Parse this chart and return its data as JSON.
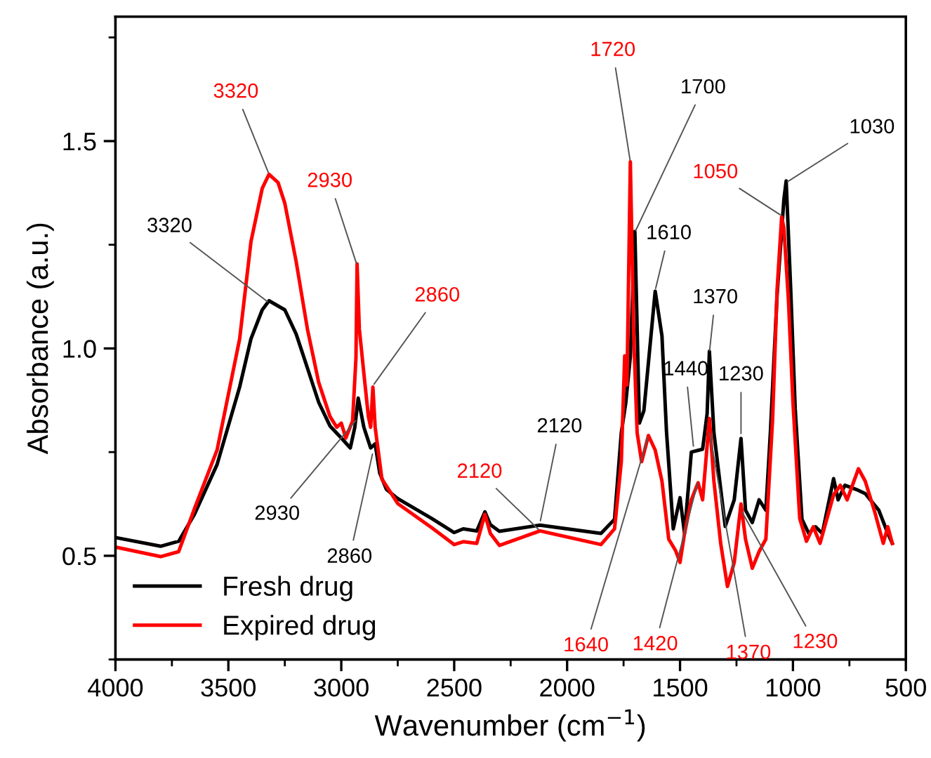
{
  "chart_data": {
    "type": "line",
    "xlabel": "Wavenumber (cm$^{−1}$)",
    "ylabel": "Absorbance (a.u.)",
    "xlim": [
      4000,
      500
    ],
    "ylim": [
      0.25,
      1.8
    ],
    "xticks": [
      4000,
      3500,
      3000,
      2500,
      2000,
      1500,
      1000,
      500
    ],
    "yticks": [
      {
        "value": 0.5,
        "label": "0.5"
      },
      {
        "value": 1.0,
        "label": "1.0"
      },
      {
        "value": 1.5,
        "label": "1.5"
      }
    ],
    "grid": false,
    "legend": "bottom left",
    "marker": "none",
    "line_style": "solid",
    "series": [
      {
        "name": "Fresh drug",
        "color": "#000000",
        "x": [
          4000,
          3800,
          3720,
          3650,
          3550,
          3450,
          3400,
          3350,
          3320,
          3250,
          3200,
          3150,
          3100,
          3050,
          3000,
          2960,
          2940,
          2925,
          2900,
          2870,
          2850,
          2830,
          2800,
          2750,
          2600,
          2500,
          2460,
          2400,
          2364,
          2340,
          2300,
          2120,
          1850,
          1790,
          1760,
          1740,
          1720,
          1700,
          1680,
          1660,
          1610,
          1580,
          1560,
          1530,
          1500,
          1480,
          1450,
          1400,
          1380,
          1370,
          1350,
          1300,
          1260,
          1230,
          1210,
          1180,
          1150,
          1120,
          1100,
          1070,
          1040,
          1030,
          1010,
          990,
          960,
          930,
          900,
          870,
          820,
          800,
          770,
          720,
          680,
          620,
          580,
          560
        ],
        "values": [
          0.544,
          0.523,
          0.535,
          0.6,
          0.72,
          0.907,
          1.023,
          1.093,
          1.115,
          1.093,
          1.035,
          0.953,
          0.87,
          0.813,
          0.784,
          0.76,
          0.81,
          0.88,
          0.81,
          0.76,
          0.77,
          0.7,
          0.66,
          0.638,
          0.59,
          0.556,
          0.565,
          0.56,
          0.606,
          0.575,
          0.559,
          0.574,
          0.554,
          0.588,
          0.797,
          0.87,
          0.98,
          1.282,
          0.82,
          0.85,
          1.138,
          1.03,
          0.8,
          0.565,
          0.64,
          0.554,
          0.75,
          0.757,
          0.843,
          0.993,
          0.797,
          0.571,
          0.635,
          0.783,
          0.61,
          0.58,
          0.635,
          0.61,
          0.797,
          1.13,
          1.36,
          1.404,
          1.144,
          0.855,
          0.588,
          0.554,
          0.57,
          0.554,
          0.686,
          0.635,
          0.67,
          0.66,
          0.65,
          0.61,
          0.554,
          0.53
        ]
      },
      {
        "name": "Expired drug",
        "color": "#ff0000",
        "x": [
          4000,
          3800,
          3720,
          3650,
          3550,
          3450,
          3400,
          3350,
          3320,
          3280,
          3250,
          3200,
          3150,
          3100,
          3050,
          3020,
          3000,
          2980,
          2950,
          2935,
          2930,
          2920,
          2900,
          2880,
          2870,
          2860,
          2850,
          2820,
          2750,
          2600,
          2500,
          2460,
          2400,
          2364,
          2340,
          2300,
          2120,
          1850,
          1790,
          1760,
          1745,
          1735,
          1720,
          1705,
          1690,
          1670,
          1640,
          1610,
          1580,
          1550,
          1520,
          1500,
          1480,
          1450,
          1420,
          1400,
          1370,
          1350,
          1320,
          1290,
          1260,
          1230,
          1210,
          1180,
          1150,
          1120,
          1090,
          1070,
          1050,
          1040,
          1020,
          1000,
          970,
          940,
          910,
          880,
          820,
          790,
          760,
          710,
          680,
          640,
          600,
          580,
          560
        ],
        "values": [
          0.521,
          0.498,
          0.51,
          0.614,
          0.755,
          1.023,
          1.257,
          1.386,
          1.42,
          1.4,
          1.35,
          1.21,
          1.047,
          0.918,
          0.836,
          0.81,
          0.82,
          0.784,
          0.825,
          0.977,
          1.204,
          1.047,
          0.94,
          0.836,
          0.81,
          0.907,
          0.81,
          0.685,
          0.626,
          0.568,
          0.527,
          0.534,
          0.53,
          0.6,
          0.554,
          0.525,
          0.56,
          0.527,
          0.565,
          0.727,
          0.982,
          0.912,
          1.45,
          1.03,
          0.797,
          0.727,
          0.79,
          0.755,
          0.68,
          0.54,
          0.513,
          0.484,
          0.554,
          0.635,
          0.676,
          0.635,
          0.831,
          0.68,
          0.53,
          0.426,
          0.484,
          0.625,
          0.54,
          0.47,
          0.51,
          0.54,
          0.83,
          1.144,
          1.317,
          1.29,
          1.117,
          0.87,
          0.59,
          0.535,
          0.57,
          0.53,
          0.647,
          0.67,
          0.635,
          0.71,
          0.68,
          0.61,
          0.53,
          0.57,
          0.53
        ]
      }
    ],
    "annotations": [
      {
        "text": "3320",
        "x": 3320,
        "y": 1.42
      },
      {
        "text": "3320",
        "x": 3320,
        "y": 1.11
      },
      {
        "text": "2930",
        "x": 2930,
        "y": 1.2
      },
      {
        "text": "2860",
        "x": 2860,
        "y": 0.91
      },
      {
        "text": "2930",
        "x": 2930,
        "y": 0.83
      },
      {
        "text": "2860",
        "x": 2860,
        "y": 0.75
      },
      {
        "text": "2120",
        "x": 2120,
        "y": 0.56
      },
      {
        "text": "2120",
        "x": 2120,
        "y": 0.58
      },
      {
        "text": "1720",
        "x": 1720,
        "y": 1.45
      },
      {
        "text": "1700",
        "x": 1700,
        "y": 1.28
      },
      {
        "text": "1610",
        "x": 1610,
        "y": 1.14
      },
      {
        "text": "1370",
        "x": 1370,
        "y": 0.99
      },
      {
        "text": "1440",
        "x": 1440,
        "y": 0.76
      },
      {
        "text": "1230",
        "x": 1230,
        "y": 0.79
      },
      {
        "text": "1030",
        "x": 1030,
        "y": 1.4
      },
      {
        "text": "1050",
        "x": 1050,
        "y": 1.32
      },
      {
        "text": "1640",
        "x": 1640,
        "y": 0.79
      },
      {
        "text": "1420",
        "x": 1420,
        "y": 0.68
      },
      {
        "text": "1370",
        "x": 1370,
        "y": 0.8
      },
      {
        "text": "1230",
        "x": 1230,
        "y": 0.61
      }
    ]
  }
}
